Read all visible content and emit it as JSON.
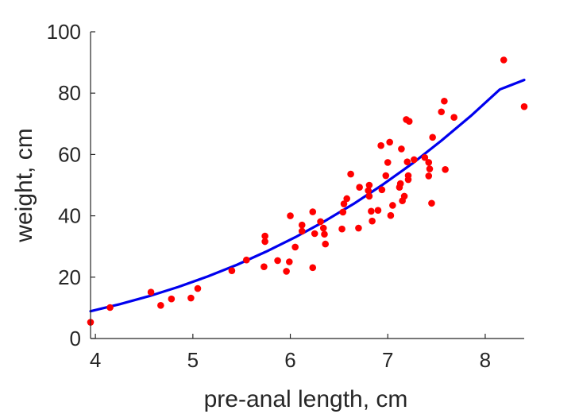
{
  "chart_data": {
    "type": "scatter",
    "title": "",
    "xlabel": "pre-anal length, cm",
    "ylabel": "weight, cm",
    "xlim": [
      3.95,
      8.4
    ],
    "ylim": [
      0,
      100
    ],
    "xticks": [
      4,
      5,
      6,
      7,
      8
    ],
    "yticks": [
      0,
      20,
      40,
      60,
      80,
      100
    ],
    "grid": false,
    "legend": "none",
    "colors": {
      "points": "#ff0000",
      "fit": "#0000ee",
      "axis": "#262626"
    },
    "series": [
      {
        "kind": "points",
        "x": [
          3.95,
          4.15,
          4.57,
          4.67,
          4.78,
          4.98,
          5.05,
          5.4,
          5.55,
          5.73,
          5.74,
          5.74,
          5.87,
          5.96,
          5.99,
          6.0,
          6.05,
          6.12,
          6.12,
          6.23,
          6.23,
          6.25,
          6.31,
          6.34,
          6.35,
          6.36,
          6.53,
          6.54,
          6.55,
          6.58,
          6.62,
          6.7,
          6.71,
          6.8,
          6.81,
          6.81,
          6.83,
          6.84,
          6.9,
          6.93,
          6.94,
          6.98,
          7.0,
          7.02,
          7.03,
          7.05,
          7.12,
          7.13,
          7.14,
          7.15,
          7.17,
          7.19,
          7.2,
          7.21,
          7.21,
          7.22,
          7.27,
          7.38,
          7.42,
          7.42,
          7.43,
          7.45,
          7.46,
          7.55,
          7.58,
          7.59,
          7.68,
          8.19,
          8.4
        ],
        "y": [
          5.3,
          10.1,
          15.1,
          10.8,
          12.9,
          13.2,
          16.3,
          22.1,
          25.6,
          23.4,
          31.6,
          33.4,
          25.4,
          21.9,
          25.0,
          40.0,
          29.8,
          35.0,
          37.0,
          23.1,
          41.3,
          34.2,
          38.1,
          36.0,
          34.0,
          30.8,
          35.7,
          41.2,
          43.9,
          45.6,
          53.6,
          36.0,
          49.3,
          48.2,
          50.0,
          46.4,
          41.5,
          38.3,
          41.8,
          62.9,
          48.5,
          53.1,
          57.4,
          64.0,
          40.1,
          43.4,
          49.3,
          50.5,
          61.8,
          44.9,
          46.4,
          71.4,
          57.6,
          51.8,
          53.1,
          70.8,
          58.3,
          59.0,
          53.0,
          57.4,
          55.3,
          44.1,
          65.6,
          73.9,
          77.4,
          55.1,
          72.1,
          90.8,
          75.6
        ]
      },
      {
        "kind": "fit",
        "x": [
          3.95,
          4.25,
          4.55,
          4.85,
          5.15,
          5.45,
          5.75,
          6.05,
          6.35,
          6.65,
          6.95,
          7.25,
          7.55,
          7.85,
          8.15,
          8.4
        ],
        "y": [
          8.9,
          11.2,
          13.8,
          16.8,
          20.2,
          24.0,
          28.3,
          33.0,
          38.2,
          43.9,
          50.2,
          57.0,
          64.5,
          72.5,
          81.2,
          84.3
        ]
      }
    ]
  }
}
